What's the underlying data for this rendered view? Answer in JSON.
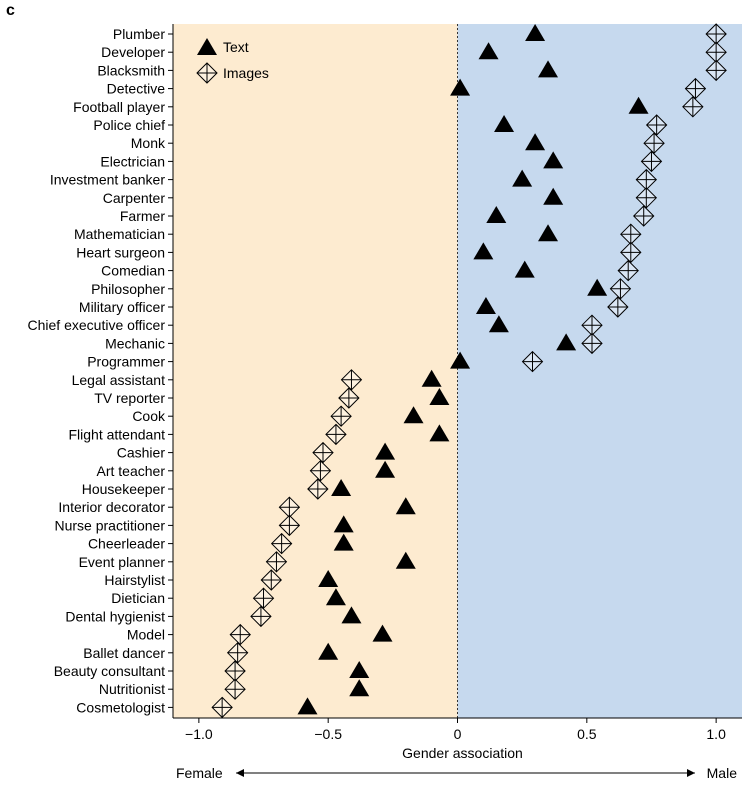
{
  "panel_label": "c",
  "chart_data": {
    "type": "scatter",
    "title": "",
    "xlabel": "Gender association",
    "xlim": [
      -1.1,
      1.1
    ],
    "xticks": [
      -1.0,
      -0.5,
      0,
      0.5,
      1.0
    ],
    "xtick_labels": [
      "−1.0",
      "−0.5",
      "0",
      "0.5",
      "1.0"
    ],
    "regions": [
      {
        "name": "female-region",
        "from": -1.1,
        "to": 0,
        "color": "#fdebd0"
      },
      {
        "name": "male-region",
        "from": 0,
        "to": 1.1,
        "color": "#c6d9ee"
      }
    ],
    "zero_line": "dotted",
    "direction_labels": {
      "left": "Female",
      "right": "Male"
    },
    "legend": {
      "position": "top-left",
      "entries": [
        "Text",
        "Images"
      ]
    },
    "categories": [
      "Plumber",
      "Developer",
      "Blacksmith",
      "Detective",
      "Football player",
      "Police chief",
      "Monk",
      "Electrician",
      "Investment banker",
      "Carpenter",
      "Farmer",
      "Mathematician",
      "Heart surgeon",
      "Comedian",
      "Philosopher",
      "Military officer",
      "Chief executive officer",
      "Mechanic",
      "Programmer",
      "Legal assistant",
      "TV reporter",
      "Cook",
      "Flight attendant",
      "Cashier",
      "Art teacher",
      "Housekeeper",
      "Interior decorator",
      "Nurse practitioner",
      "Cheerleader",
      "Event planner",
      "Hairstylist",
      "Dietician",
      "Dental hygienist",
      "Model",
      "Ballet dancer",
      "Beauty consultant",
      "Nutritionist",
      "Cosmetologist"
    ],
    "series": [
      {
        "name": "Text",
        "marker": "triangle",
        "values": [
          0.3,
          0.12,
          0.35,
          0.01,
          0.7,
          0.18,
          0.3,
          0.37,
          0.25,
          0.37,
          0.15,
          0.35,
          0.1,
          0.26,
          0.54,
          0.11,
          0.16,
          0.42,
          0.01,
          -0.1,
          -0.07,
          -0.17,
          -0.07,
          -0.28,
          -0.28,
          -0.45,
          -0.2,
          -0.44,
          -0.44,
          -0.2,
          -0.5,
          -0.47,
          -0.41,
          -0.29,
          -0.5,
          -0.38,
          -0.38,
          -0.58
        ]
      },
      {
        "name": "Images",
        "marker": "crossed-diamond",
        "values": [
          1.0,
          1.0,
          1.0,
          0.92,
          0.91,
          0.77,
          0.76,
          0.75,
          0.73,
          0.73,
          0.72,
          0.67,
          0.67,
          0.66,
          0.63,
          0.62,
          0.52,
          0.52,
          0.29,
          -0.41,
          -0.42,
          -0.45,
          -0.47,
          -0.52,
          -0.53,
          -0.54,
          -0.65,
          -0.65,
          -0.68,
          -0.7,
          -0.72,
          -0.75,
          -0.76,
          -0.84,
          -0.85,
          -0.86,
          -0.86,
          -0.91
        ]
      }
    ]
  }
}
